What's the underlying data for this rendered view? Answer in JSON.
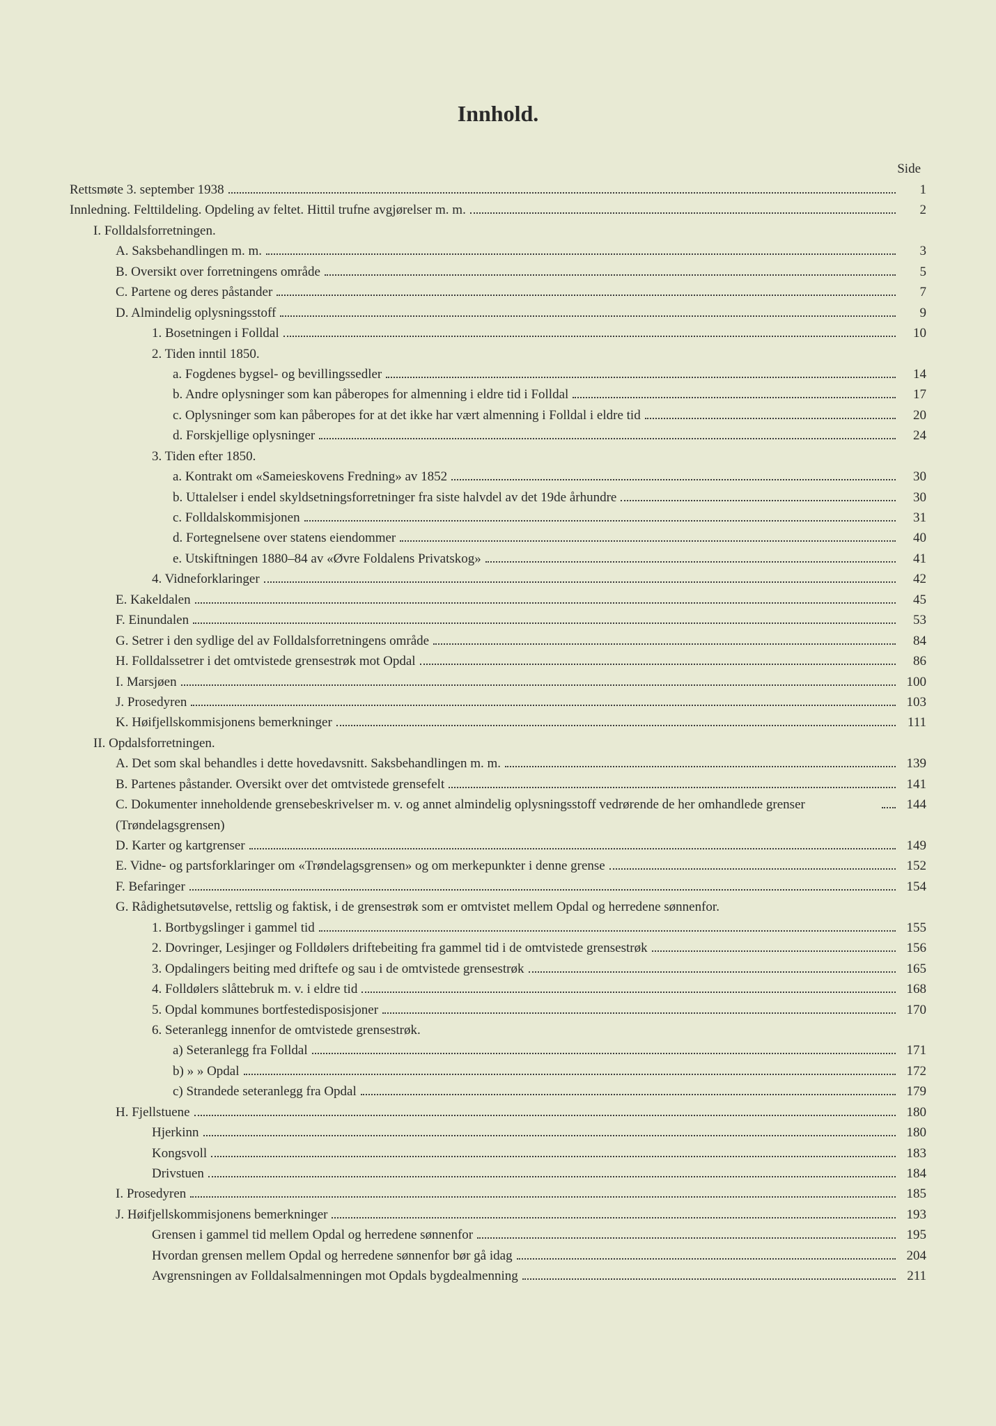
{
  "title": "Innhold.",
  "sideLabel": "Side",
  "colors": {
    "background": "#e8ead4",
    "text": "#2a2a2a",
    "leader": "#3a3a3a"
  },
  "typography": {
    "title_fontsize": 32,
    "body_fontsize": 19,
    "font_family": "Georgia, Times New Roman, serif",
    "line_height": 1.55
  },
  "entries": [
    {
      "level": 0,
      "text": "Rettsmøte 3. september 1938",
      "page": "1"
    },
    {
      "level": 0,
      "text": "Innledning. Felttildeling. Opdeling av feltet. Hittil trufne avgjørelser m. m.",
      "page": "2"
    },
    {
      "level": 1,
      "text": "I. Folldalsforretningen.",
      "page": "",
      "noleader": true
    },
    {
      "level": 2,
      "text": "A. Saksbehandlingen m. m.",
      "page": "3"
    },
    {
      "level": 2,
      "text": "B. Oversikt over forretningens område",
      "page": "5"
    },
    {
      "level": 2,
      "text": "C. Partene og deres påstander",
      "page": "7"
    },
    {
      "level": 2,
      "text": "D. Almindelig oplysningsstoff",
      "page": "9"
    },
    {
      "level": 3,
      "text": "1. Bosetningen i Folldal",
      "page": "10"
    },
    {
      "level": 3,
      "text": "2. Tiden inntil 1850.",
      "page": "",
      "noleader": true
    },
    {
      "level": 4,
      "text": "a. Fogdenes bygsel- og bevillingssedler",
      "page": "14"
    },
    {
      "level": 4,
      "text": "b. Andre oplysninger som kan påberopes for almenning i eldre tid i Folldal",
      "page": "17"
    },
    {
      "level": 4,
      "text": "c. Oplysninger som kan påberopes for at det ikke har vært almenning i Folldal i eldre tid",
      "page": "20"
    },
    {
      "level": 4,
      "text": "d. Forskjellige oplysninger",
      "page": "24"
    },
    {
      "level": 3,
      "text": "3. Tiden efter 1850.",
      "page": "",
      "noleader": true
    },
    {
      "level": 4,
      "text": "a. Kontrakt om «Sameieskovens Fredning» av 1852",
      "page": "30"
    },
    {
      "level": 4,
      "text": "b. Uttalelser i endel skyldsetningsforretninger fra siste halvdel av det 19de århundre",
      "page": "30"
    },
    {
      "level": 4,
      "text": "c. Folldalskommisjonen",
      "page": "31"
    },
    {
      "level": 4,
      "text": "d. Fortegnelsene over statens eiendommer",
      "page": "40"
    },
    {
      "level": 4,
      "text": "e. Utskiftningen 1880–84 av «Øvre Foldalens Privatskog»",
      "page": "41"
    },
    {
      "level": 3,
      "text": "4. Vidneforklaringer",
      "page": "42"
    },
    {
      "level": 2,
      "text": "E. Kakeldalen",
      "page": "45"
    },
    {
      "level": 2,
      "text": "F. Einundalen",
      "page": "53"
    },
    {
      "level": 2,
      "text": "G. Setrer i den sydlige del av Folldalsforretningens område",
      "page": "84"
    },
    {
      "level": 2,
      "text": "H. Folldalssetrer i det omtvistede grensestrøk mot Opdal",
      "page": "86"
    },
    {
      "level": 2,
      "text": "I. Marsjøen",
      "page": "100"
    },
    {
      "level": 2,
      "text": "J. Prosedyren",
      "page": "103"
    },
    {
      "level": 2,
      "text": "K. Høifjellskommisjonens bemerkninger",
      "page": "111"
    },
    {
      "level": 1,
      "text": "II. Opdalsforretningen.",
      "page": "",
      "noleader": true
    },
    {
      "level": 2,
      "text": "A. Det som skal behandles i dette hovedavsnitt. Saksbehandlingen m. m.",
      "page": "139"
    },
    {
      "level": 2,
      "text": "B. Partenes påstander. Oversikt over det omtvistede grensefelt",
      "page": "141"
    },
    {
      "level": 2,
      "text": "C. Dokumenter inneholdende grensebeskrivelser m. v. og annet almindelig oplysningsstoff vedrørende de her omhandlede grenser (Trøndelagsgrensen)",
      "page": "144"
    },
    {
      "level": 2,
      "text": "D. Karter og kartgrenser",
      "page": "149"
    },
    {
      "level": 2,
      "text": "E. Vidne- og partsforklaringer om «Trøndelagsgrensen» og om merkepunkter i denne grense",
      "page": "152"
    },
    {
      "level": 2,
      "text": "F. Befaringer",
      "page": "154"
    },
    {
      "level": 2,
      "text": "G. Rådighetsutøvelse, rettslig og faktisk, i de grensestrøk som er omtvistet mellem Opdal og herredene sønnenfor.",
      "page": "",
      "noleader": true
    },
    {
      "level": 3,
      "text": "1. Bortbygslinger i gammel tid",
      "page": "155"
    },
    {
      "level": 3,
      "text": "2. Dovringer, Lesjinger og Folldølers driftebeiting fra gammel tid i de omtvistede grensestrøk",
      "page": "156"
    },
    {
      "level": 3,
      "text": "3. Opdalingers beiting med driftefe og sau i de omtvistede grensestrøk",
      "page": "165"
    },
    {
      "level": 3,
      "text": "4. Folldølers slåttebruk m. v. i eldre tid",
      "page": "168"
    },
    {
      "level": 3,
      "text": "5. Opdal kommunes bortfestedisposisjoner",
      "page": "170"
    },
    {
      "level": 3,
      "text": "6. Seteranlegg innenfor de omtvistede grensestrøk.",
      "page": "",
      "noleader": true
    },
    {
      "level": 4,
      "text": "a) Seteranlegg fra Folldal",
      "page": "171"
    },
    {
      "level": 4,
      "text": "b)      »           » Opdal",
      "page": "172"
    },
    {
      "level": 4,
      "text": "c) Strandede seteranlegg fra Opdal",
      "page": "179"
    },
    {
      "level": 2,
      "text": "H. Fjellstuene",
      "page": "180"
    },
    {
      "level": 3,
      "text": "Hjerkinn",
      "page": "180"
    },
    {
      "level": 3,
      "text": "Kongsvoll",
      "page": "183"
    },
    {
      "level": 3,
      "text": "Drivstuen",
      "page": "184"
    },
    {
      "level": 2,
      "text": "I. Prosedyren",
      "page": "185"
    },
    {
      "level": 2,
      "text": "J. Høifjellskommisjonens bemerkninger",
      "page": "193"
    },
    {
      "level": 3,
      "text": "Grensen i gammel tid mellem Opdal og herredene sønnenfor",
      "page": "195"
    },
    {
      "level": 3,
      "text": "Hvordan grensen mellem Opdal og herredene sønnenfor bør gå idag",
      "page": "204"
    },
    {
      "level": 3,
      "text": "Avgrensningen av Folldalsalmenningen mot Opdals bygdealmenning",
      "page": "211"
    }
  ]
}
